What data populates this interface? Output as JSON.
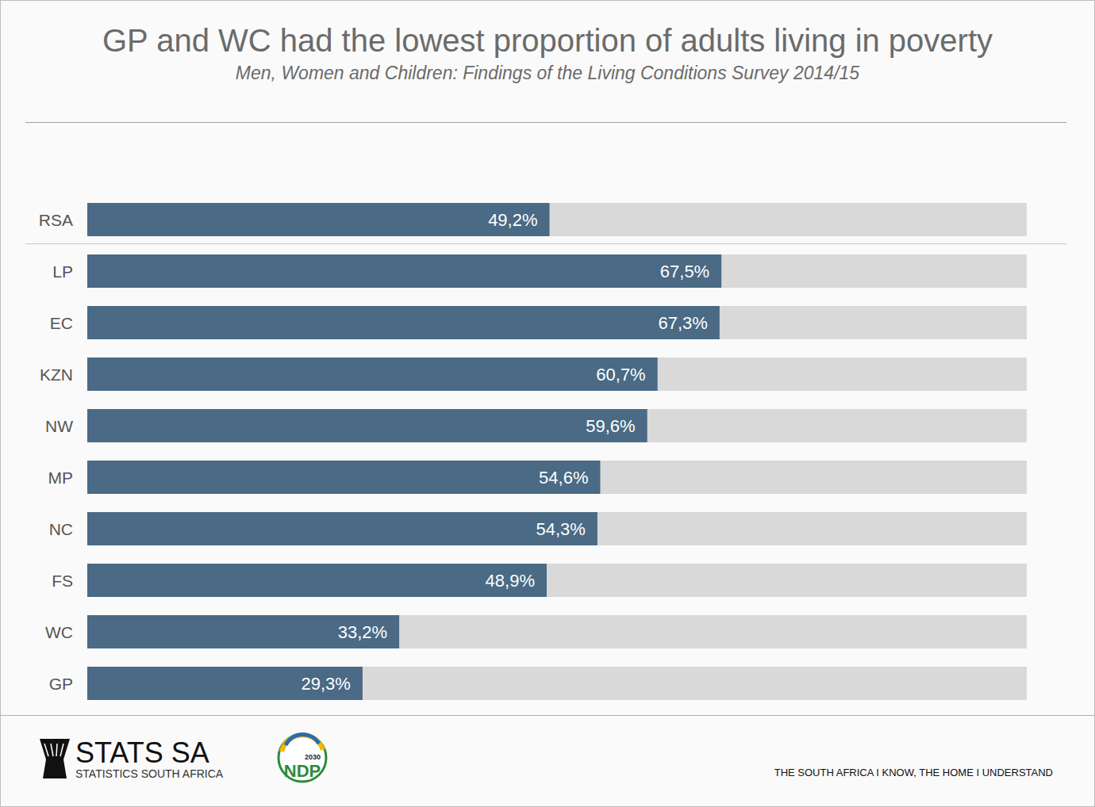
{
  "chart_data": {
    "type": "bar",
    "orientation": "horizontal",
    "title": "GP and WC had the lowest proportion of adults living in poverty",
    "subtitle": "Men, Women and Children: Findings of the Living Conditions Survey 2014/15",
    "categories": [
      "RSA",
      "LP",
      "EC",
      "KZN",
      "NW",
      "MP",
      "NC",
      "FS",
      "WC",
      "GP"
    ],
    "values": [
      49.2,
      67.5,
      67.3,
      60.7,
      59.6,
      54.6,
      54.3,
      48.9,
      33.2,
      29.3
    ],
    "value_labels": [
      "49,2%",
      "67,5%",
      "67,3%",
      "60,7%",
      "59,6%",
      "54,6%",
      "54,3%",
      "48,9%",
      "33,2%",
      "29,3%"
    ],
    "color": "#4a6a85",
    "xlim": [
      0,
      100
    ],
    "grid": false,
    "tick_labels": false,
    "data_labels": true
  },
  "footer": {
    "logo_text": "STATS SA",
    "logo_subtext": "STATISTICS SOUTH AFRICA",
    "ndp_text": "NDP",
    "ndp_year": "2030",
    "tagline": "THE SOUTH AFRICA I KNOW, THE HOME I UNDERSTAND"
  }
}
